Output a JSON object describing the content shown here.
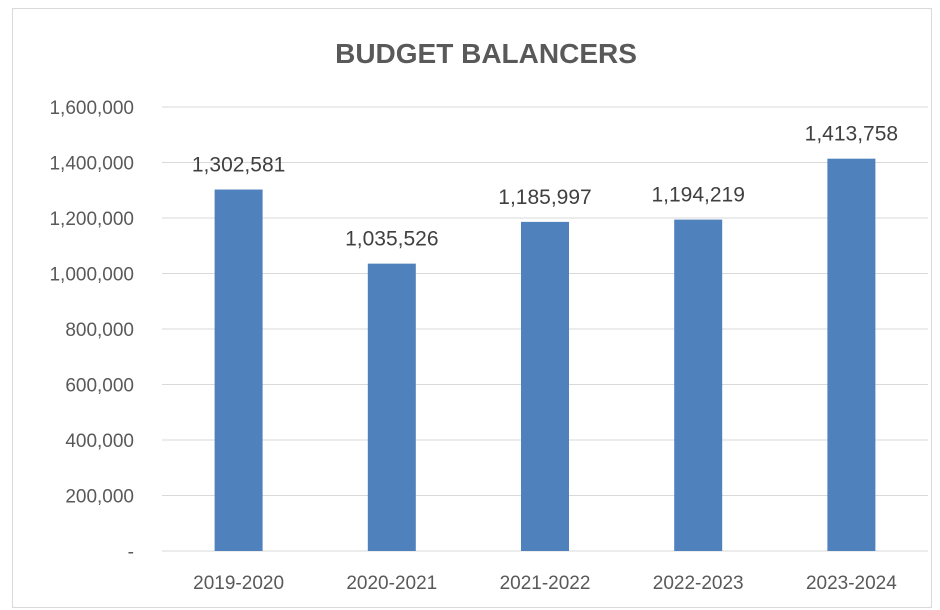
{
  "chart_data": {
    "type": "bar",
    "title": "BUDGET BALANCERS",
    "categories": [
      "2019-2020",
      "2020-2021",
      "2021-2022",
      "2022-2023",
      "2023-2024"
    ],
    "values": [
      1302581,
      1035526,
      1185997,
      1194219,
      1413758
    ],
    "data_labels": [
      "1,302,581",
      "1,035,526",
      "1,185,997",
      "1,194,219",
      "1,413,758"
    ],
    "y_ticks": [
      0,
      200000,
      400000,
      600000,
      800000,
      1000000,
      1200000,
      1400000,
      1600000
    ],
    "y_tick_labels": [
      "-",
      "200,000",
      "400,000",
      "600,000",
      "800,000",
      "1,000,000",
      "1,200,000",
      "1,400,000",
      "1,600,000"
    ],
    "ylim": [
      0,
      1600000
    ],
    "xlabel": "",
    "ylabel": "",
    "grid": true,
    "legend": "none",
    "bar_color": "#4f81bd"
  }
}
